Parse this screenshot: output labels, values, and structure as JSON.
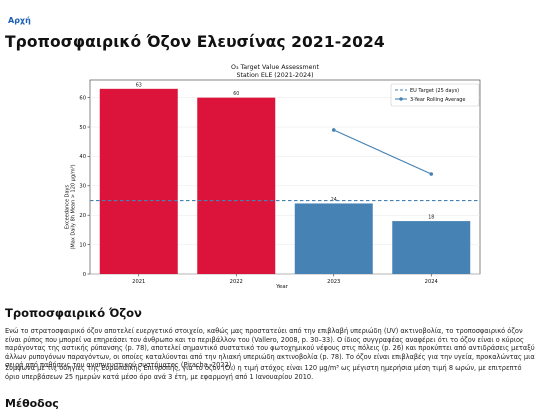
{
  "nav": {
    "home_label": "Αρχή"
  },
  "page": {
    "title": "Τροποσφαιρικό Όζον Ελευσίνας 2021-2024"
  },
  "chart_data": {
    "type": "bar",
    "title": "O₃ Target Value Assessment",
    "subtitle": "Station ELE (2021-2024)",
    "xlabel": "Year",
    "ylabel_line1": "Exceedance Days",
    "ylabel_line2": "(Max Daily 8h Mean > 120 μg/m³)",
    "categories": [
      "2021",
      "2022",
      "2023",
      "2024"
    ],
    "values": [
      63,
      60,
      24,
      18
    ],
    "value_labels": [
      "63",
      "60",
      "24",
      "18"
    ],
    "bar_colors": [
      "#dc143c",
      "#dc143c",
      "#4682b4",
      "#4682b4"
    ],
    "ylim": [
      0,
      66
    ],
    "yticks": [
      0,
      10,
      20,
      30,
      40,
      50,
      60
    ],
    "ytick_labels": [
      "0",
      "10",
      "20",
      "30",
      "40",
      "50",
      "60"
    ],
    "grid": true,
    "legend_position": "top-right",
    "target": {
      "value": 25,
      "label": "EU Target (25 days)",
      "color": "#4682b4"
    },
    "rolling": {
      "label": "3-Year Rolling Average",
      "color": "#4682b4",
      "x": [
        "2023",
        "2024"
      ],
      "values": [
        49,
        34
      ]
    }
  },
  "section": {
    "title": "Τροποσφαιρικό Όζον",
    "paragraph1": "Ενώ το στρατοσφαιρικό όζον αποτελεί ευεργετικό στοιχείο, καθώς μας προστατεύει από την επιβλαβή υπεριώδη (UV) ακτινοβολία, το τροποσφαιρικό όζον είναι ρύπος που μπορεί να επηρεάσει τον άνθρωπο και το περιβάλλον του (Vallero, 2008, p. 30–33). Ο ίδιος συγγραφέας αναφέρει ότι το όζον είναι ο κύριος παράγοντας της αστικής ρύπανσης (p. 78), αποτελεί σημαντικό συστατικό του φωτοχημικού νέφους στις πόλεις (p. 26) και προκύπτει από αντιδράσεις μεταξύ άλλων ρυπογόνων παραγόντων, οι οποίες καταλύονται από την ηλιακή υπεριώδη ακτινοβολία (p. 78). Το όζον είναι επιβλαβές για την υγεία, προκαλώντας μια σειρά από παθήσεις του αναπνευστικού συστήματος (Piracha, 2022).",
    "paragraph2": "Σύμφωνα με τις οδηγίες της Ευρωπαϊκής Επιτροπής, για το όζον (O₃) η τιμή στόχος είναι 120 μg/m³ ως μέγιστη ημερήσια μέση τιμή 8 ωρών, με επιτρεπτό όριο υπερβάσεων 25 ημερών κατά μέσο όρο ανά 3 έτη, με εφαρμογή από 1 Ιανουαρίου 2010.",
    "next_heading": "Μέθοδος"
  }
}
